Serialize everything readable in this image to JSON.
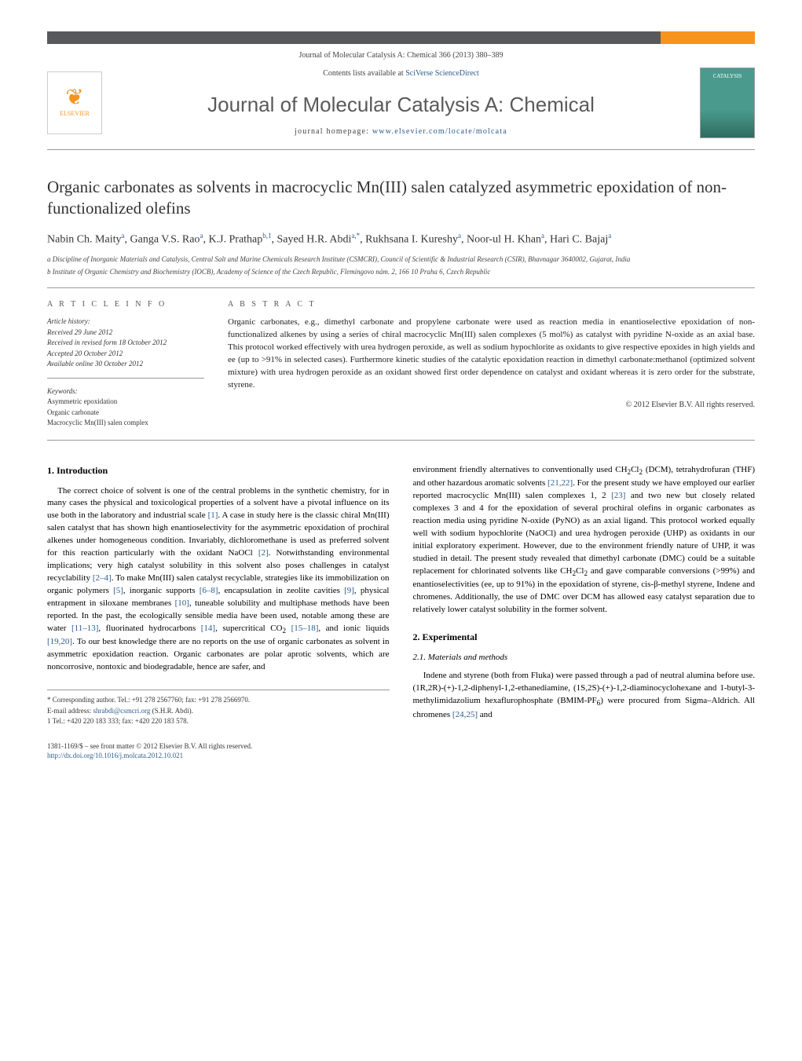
{
  "colors": {
    "header_bar": "#58595b",
    "header_accent": "#f7941e",
    "link": "#2e5c8a",
    "text": "#222222",
    "muted": "#444444",
    "rule": "#999999"
  },
  "page_header": {
    "citation": "Journal of Molecular Catalysis A: Chemical 366 (2013) 380–389",
    "contents_prefix": "Contents lists available at ",
    "contents_link": "SciVerse ScienceDirect",
    "journal_title": "Journal of Molecular Catalysis A: Chemical",
    "homepage_prefix": "journal homepage: ",
    "homepage_link": "www.elsevier.com/locate/molcata",
    "publisher_logo_text": "ELSEVIER",
    "cover_text": "CATALYSIS"
  },
  "article": {
    "title": "Organic carbonates as solvents in macrocyclic Mn(III) salen catalyzed asymmetric epoxidation of non-functionalized olefins",
    "authors_html": "Nabin Ch. Maity<sup>a</sup>, Ganga V.S. Rao<sup>a</sup>, K.J. Prathap<sup>b,1</sup>, Sayed H.R. Abdi<sup>a,*</sup>, Rukhsana I. Kureshy<sup>a</sup>, Noor-ul H. Khan<sup>a</sup>, Hari C. Bajaj<sup>a</sup>",
    "affiliations": {
      "a": "a Discipline of Inorganic Materials and Catalysis, Central Salt and Marine Chemicals Research Institute (CSMCRI), Council of Scientific & Industrial Research (CSIR), Bhavnagar 3640002, Gujarat, India",
      "b": "b Institute of Organic Chemistry and Biochemistry (IOCB), Academy of Science of the Czech Republic, Flemingovo nám. 2, 166 10 Praha 6, Czech Republic"
    }
  },
  "info": {
    "heading": "A R T I C L E   I N F O",
    "history_head": "Article history:",
    "received": "Received 29 June 2012",
    "revised": "Received in revised form 18 October 2012",
    "accepted": "Accepted 20 October 2012",
    "online": "Available online 30 October 2012",
    "keywords_head": "Keywords:",
    "keywords": [
      "Asymmetric epoxidation",
      "Organic carbonate",
      "Macrocyclic Mn(III) salen complex"
    ]
  },
  "abstract": {
    "heading": "A B S T R A C T",
    "text": "Organic carbonates, e.g., dimethyl carbonate and propylene carbonate were used as reaction media in enantioselective epoxidation of non-functionalized alkenes by using a series of chiral macrocyclic Mn(III) salen complexes (5 mol%) as catalyst with pyridine N-oxide as an axial base. This protocol worked effectively with urea hydrogen peroxide, as well as sodium hypochlorite as oxidants to give respective epoxides in high yields and ee (up to >91% in selected cases). Furthermore kinetic studies of the catalytic epoxidation reaction in dimethyl carbonate:methanol (optimized solvent mixture) with urea hydrogen peroxide as an oxidant showed first order dependence on catalyst and oxidant whereas it is zero order for the substrate, styrene.",
    "copyright": "© 2012 Elsevier B.V. All rights reserved."
  },
  "sections": {
    "intro_head": "1. Introduction",
    "intro_p1": "The correct choice of solvent is one of the central problems in the synthetic chemistry, for in many cases the physical and toxicological properties of a solvent have a pivotal influence on its use both in the laboratory and industrial scale [1]. A case in study here is the classic chiral Mn(III) salen catalyst that has shown high enantioselectivity for the asymmetric epoxidation of prochiral alkenes under homogeneous condition. Invariably, dichloromethane is used as preferred solvent for this reaction particularly with the oxidant NaOCl [2]. Notwithstanding environmental implications; very high catalyst solubility in this solvent also poses challenges in catalyst recyclability [2–4]. To make Mn(III) salen catalyst recyclable, strategies like its immobilization on organic polymers [5], inorganic supports [6–8], encapsulation in zeolite cavities [9], physical entrapment in siloxane membranes [10], tuneable solubility and multiphase methods have been reported. In the past, the ecologically sensible media have been used, notable among these are water [11–13], fluorinated hydrocarbons [14], supercritical CO2 [15–18], and ionic liquids [19,20]. To our best knowledge there are no reports on the use of organic carbonates as solvent in asymmetric epoxidation reaction. Organic carbonates are polar aprotic solvents, which are noncorrosive, nontoxic and biodegradable, hence are safer, and",
    "intro_p2": "environment friendly alternatives to conventionally used CH2Cl2 (DCM), tetrahydrofuran (THF) and other hazardous aromatic solvents [21,22]. For the present study we have employed our earlier reported macrocyclic Mn(III) salen complexes 1, 2 [23] and two new but closely related complexes 3 and 4 for the epoxidation of several prochiral olefins in organic carbonates as reaction media using pyridine N-oxide (PyNO) as an axial ligand. This protocol worked equally well with sodium hypochlorite (NaOCl) and urea hydrogen peroxide (UHP) as oxidants in our initial exploratory experiment. However, due to the environment friendly nature of UHP, it was studied in detail. The present study revealed that dimethyl carbonate (DMC) could be a suitable replacement for chlorinated solvents like CH2Cl2 and gave comparable conversions (>99%) and enantioselectivities (ee, up to 91%) in the epoxidation of styrene, cis-β-methyl styrene, Indene and chromenes. Additionally, the use of DMC over DCM has allowed easy catalyst separation due to relatively lower catalyst solubility in the former solvent.",
    "exp_head": "2. Experimental",
    "exp_sub": "2.1. Materials and methods",
    "exp_p1": "Indene and styrene (both from Fluka) were passed through a pad of neutral alumina before use. (1R,2R)-(+)-1,2-diphenyl-1,2-ethanediamine, (1S,2S)-(+)-1,2-diaminocyclohexane and 1-butyl-3-methylimidazolium hexaflurophosphate (BMIM-PF6) were procured from Sigma–Aldrich. All chromenes [24,25] and"
  },
  "footnotes": {
    "corr": "* Corresponding author. Tel.: +91 278 2567760; fax: +91 278 2566970.",
    "email_label": "E-mail address: ",
    "email": "shrabdi@csmcri.org",
    "email_who": " (S.H.R. Abdi).",
    "fn1": "1 Tel.: +420 220 183 333; fax: +420 220 183 578."
  },
  "footer": {
    "issn": "1381-1169/$ – see front matter © 2012 Elsevier B.V. All rights reserved.",
    "doi": "http://dx.doi.org/10.1016/j.molcata.2012.10.021"
  }
}
